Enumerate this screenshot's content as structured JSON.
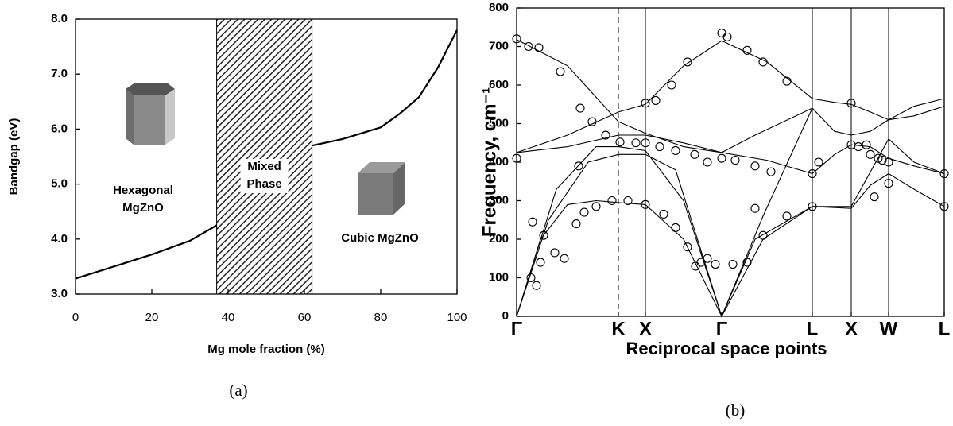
{
  "chart_data": [
    {
      "type": "line",
      "xlabel": "Mg mole fraction (%)",
      "ylabel": "Bandgap (eV)",
      "caption": "(a)",
      "x": [
        0,
        10,
        20,
        30,
        37,
        50,
        62,
        70,
        80,
        85,
        90,
        95,
        100
      ],
      "series": [
        {
          "color": "#000000",
          "values": [
            3.28,
            3.5,
            3.72,
            3.97,
            4.25,
            null,
            5.7,
            5.82,
            6.03,
            6.28,
            6.58,
            7.12,
            7.8
          ]
        }
      ],
      "xlim": [
        0,
        100
      ],
      "xticks": [
        0,
        20,
        40,
        60,
        80,
        100
      ],
      "ylim": [
        3,
        8
      ],
      "yticks": [
        {
          "value": 3,
          "label": "3.0"
        },
        {
          "value": 4,
          "label": "4.0"
        },
        {
          "value": 5,
          "label": "5.0"
        },
        {
          "value": 6,
          "label": "6.0"
        },
        {
          "value": 7,
          "label": "7.0"
        },
        {
          "value": 8,
          "label": "8.0"
        }
      ],
      "span": {
        "x0": 37,
        "x1": 62,
        "label": [
          "Mixed",
          "Phase"
        ]
      },
      "annotations": [
        [
          "Hexagonal",
          "MgZnO"
        ],
        [
          "Cubic MgZnO"
        ]
      ]
    },
    {
      "type": "line",
      "xlabel": "Reciprocal space points",
      "ylabel": "Frequency, cm⁻¹",
      "caption": "(b)",
      "xlim": [
        0,
        538
      ],
      "xticks": [
        {
          "value": 0,
          "label": "Γ"
        },
        {
          "value": 128,
          "label": "K"
        },
        {
          "value": 162,
          "label": "X"
        },
        {
          "value": 258,
          "label": "Γ"
        },
        {
          "value": 372,
          "label": "L"
        },
        {
          "value": 421,
          "label": "X"
        },
        {
          "value": 468,
          "label": "W"
        },
        {
          "value": 538,
          "label": "L"
        }
      ],
      "vlines": [
        {
          "value": 128,
          "style": "dashed"
        },
        {
          "value": 162,
          "style": "solid"
        },
        {
          "value": 372,
          "style": "solid"
        },
        {
          "value": 421,
          "style": "solid"
        },
        {
          "value": 468,
          "style": "solid"
        }
      ],
      "ylim": [
        0,
        800
      ],
      "yticks": [
        0,
        100,
        200,
        300,
        400,
        500,
        600,
        700,
        800
      ],
      "series": [
        {
          "type": "line",
          "color": "#000000",
          "x": [
            0,
            64,
            128,
            162,
            210,
            258,
            315,
            372,
            400,
            421,
            445,
            468,
            500,
            538
          ],
          "values": [
            718,
            650,
            505,
            475,
            440,
            425,
            405,
            370,
            420,
            445,
            440,
            410,
            390,
            370
          ]
        },
        {
          "type": "line",
          "color": "#000000",
          "x": [
            0,
            64,
            128,
            162,
            210,
            258,
            315,
            372,
            400,
            421,
            445,
            468,
            500,
            538
          ],
          "values": [
            425,
            470,
            530,
            550,
            650,
            715,
            660,
            565,
            555,
            550,
            530,
            510,
            545,
            565
          ]
        },
        {
          "type": "line",
          "color": "#000000",
          "x": [
            0,
            64,
            128,
            162,
            210,
            258,
            300,
            372,
            400,
            421,
            445,
            468,
            500,
            538
          ],
          "values": [
            425,
            440,
            470,
            470,
            450,
            425,
            470,
            540,
            480,
            470,
            480,
            510,
            520,
            545
          ]
        },
        {
          "type": "line",
          "color": "#000000",
          "x": [
            0,
            30,
            64,
            100,
            128,
            162,
            210,
            258,
            310,
            372,
            421,
            445,
            468,
            500,
            538
          ],
          "values": [
            0,
            200,
            290,
            300,
            295,
            290,
            200,
            0,
            200,
            285,
            280,
            340,
            370,
            330,
            285
          ]
        },
        {
          "type": "line",
          "color": "#000000",
          "x": [
            0,
            50,
            100,
            128,
            162,
            210,
            258,
            310,
            372
          ],
          "values": [
            0,
            330,
            440,
            440,
            430,
            300,
            0,
            260,
            540
          ]
        },
        {
          "type": "line",
          "color": "#000000",
          "x": [
            0,
            40,
            90,
            128,
            162,
            200,
            258,
            300,
            372,
            421,
            468,
            500,
            538
          ],
          "values": [
            0,
            250,
            400,
            420,
            420,
            380,
            0,
            200,
            285,
            285,
            460,
            400,
            370
          ]
        },
        {
          "type": "scatter",
          "color": "#000000",
          "x": [
            0,
            15,
            28,
            55,
            80,
            95,
            112,
            130,
            150,
            162,
            180,
            200,
            224,
            240,
            258,
            275,
            300,
            320,
            372,
            0,
            78,
            20,
            34,
            48,
            60,
            75,
            85,
            100,
            120,
            140,
            162,
            185,
            200,
            215,
            225,
            232,
            240,
            250,
            272,
            290,
            300,
            310,
            340,
            372,
            380,
            258,
            265,
            290,
            310,
            340,
            215,
            195,
            175,
            162,
            421,
            421,
            430,
            440,
            445,
            455,
            460,
            468,
            468,
            450,
            538,
            538,
            18,
            25,
            30
          ],
          "values": [
            720,
            700,
            697,
            635,
            540,
            505,
            470,
            452,
            450,
            450,
            440,
            430,
            420,
            400,
            410,
            405,
            390,
            375,
            370,
            410,
            390,
            245,
            210,
            165,
            150,
            240,
            270,
            285,
            300,
            300,
            290,
            265,
            230,
            180,
            130,
            140,
            150,
            135,
            135,
            140,
            280,
            210,
            260,
            285,
            400,
            735,
            725,
            690,
            660,
            610,
            660,
            600,
            560,
            553,
            553,
            445,
            440,
            445,
            420,
            410,
            405,
            400,
            345,
            310,
            285,
            370,
            100,
            80,
            140
          ]
        }
      ]
    }
  ]
}
